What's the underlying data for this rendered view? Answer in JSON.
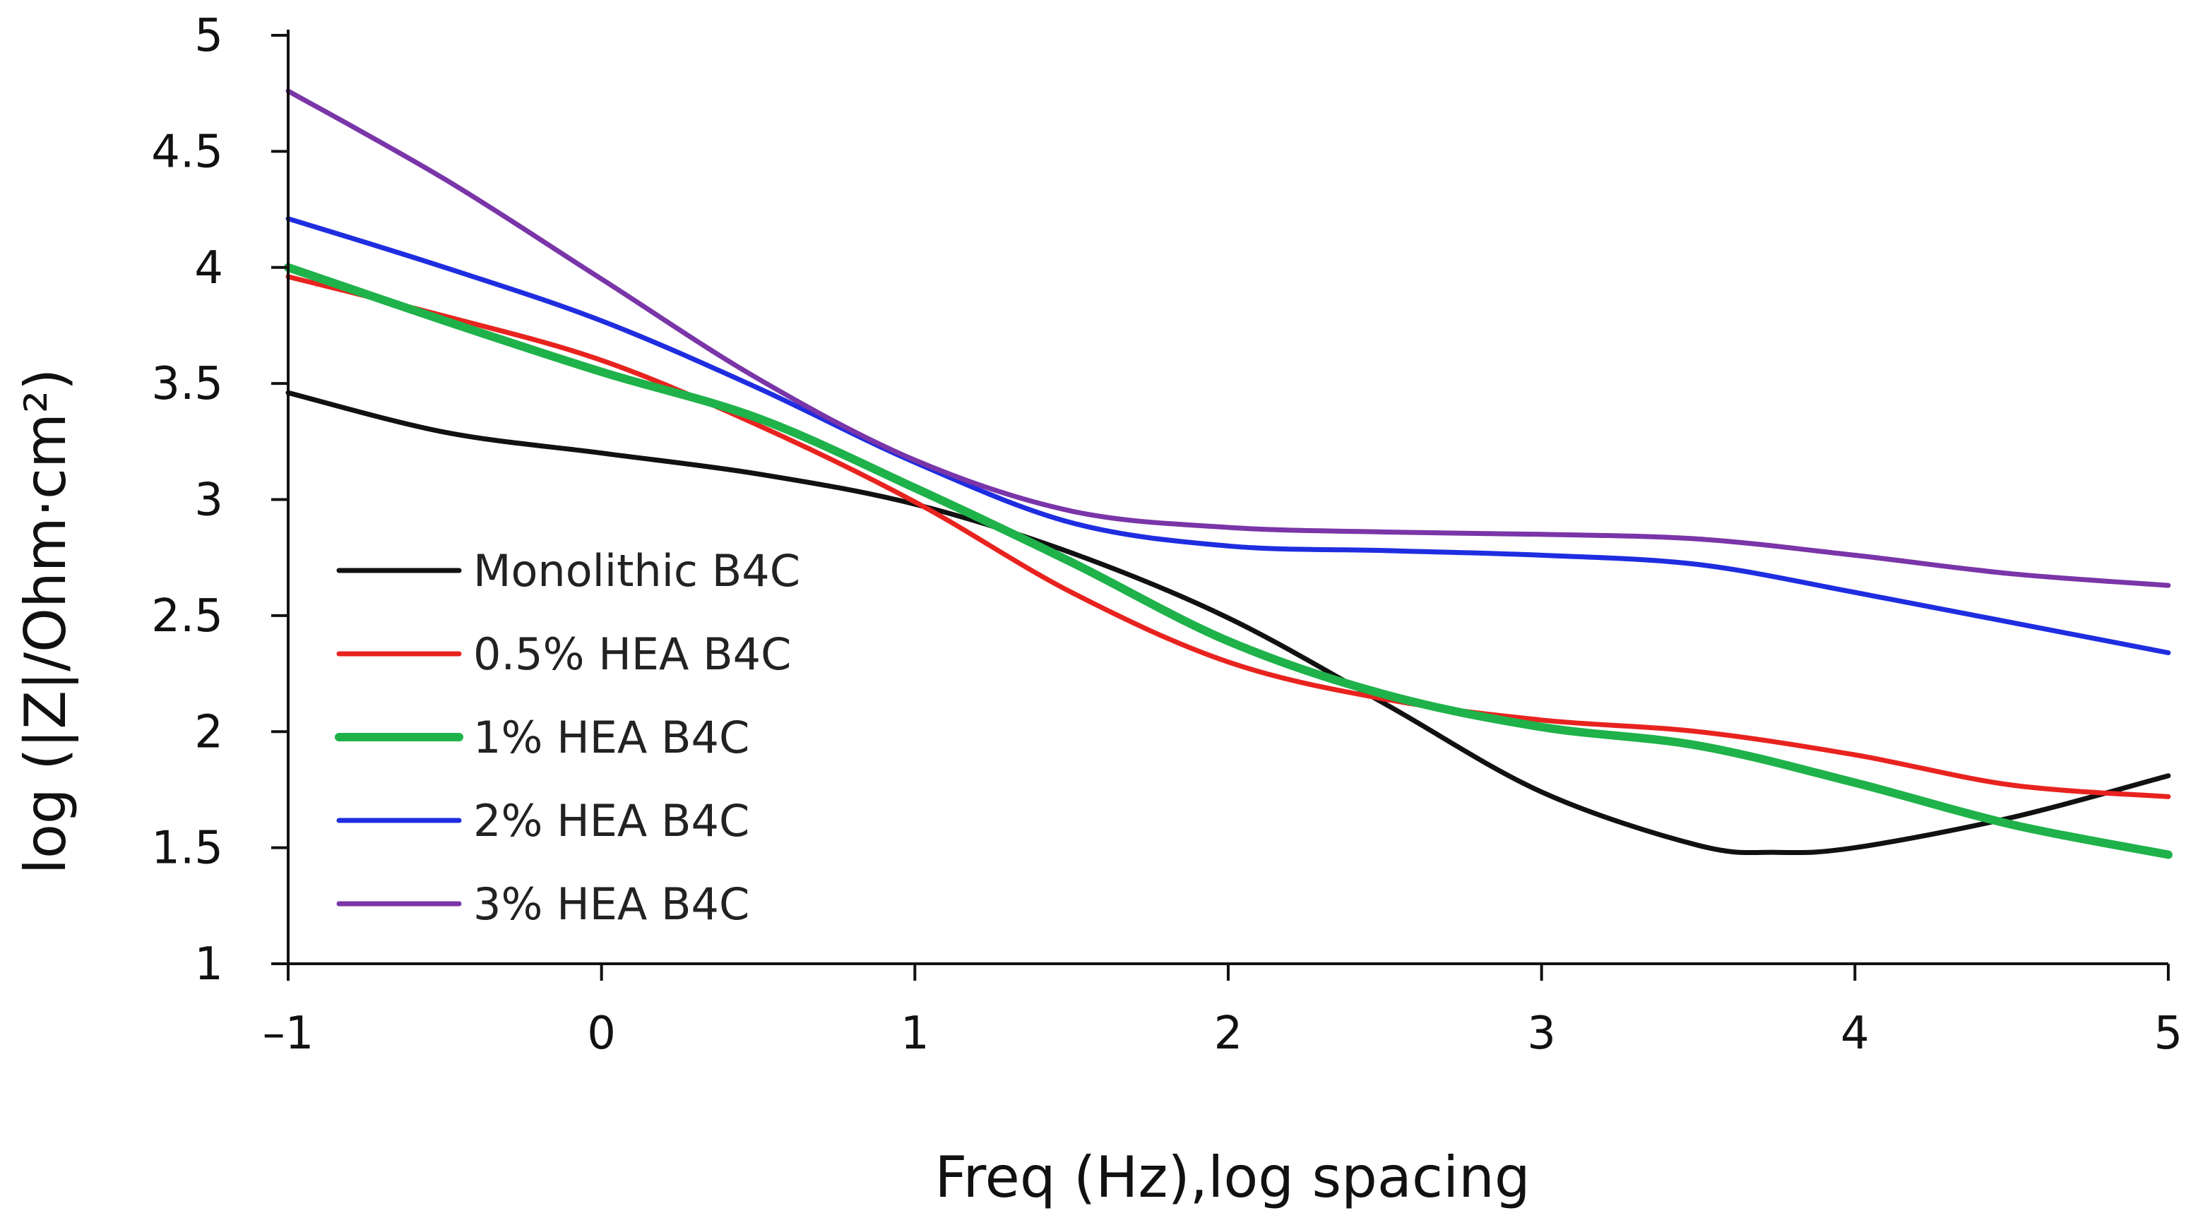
{
  "chart_data": {
    "type": "line",
    "title": "",
    "xlabel": "Freq (Hz),log spacing",
    "ylabel": "log (|Z|/Ohm·cm²)",
    "xlim": [
      -1,
      5
    ],
    "ylim": [
      1,
      5
    ],
    "xticks": [
      -1,
      0,
      1,
      2,
      3,
      4,
      5
    ],
    "xtick_labels": [
      "–1",
      "0",
      "1",
      "2",
      "3",
      "4",
      "5"
    ],
    "yticks": [
      1,
      1.5,
      2,
      2.5,
      3,
      3.5,
      4,
      4.5,
      5
    ],
    "ytick_labels": [
      "1",
      "1.5",
      "2",
      "2.5",
      "3",
      "3.5",
      "4",
      "4.5",
      "5"
    ],
    "grid": false,
    "legend_position": "lower-left",
    "series": [
      {
        "name": "Monolithic B4C",
        "color": "#111111",
        "x": [
          -1,
          -0.5,
          0,
          0.5,
          1,
          1.5,
          2,
          2.5,
          3,
          3.5,
          3.75,
          4,
          4.5,
          5
        ],
        "y": [
          3.46,
          3.29,
          3.2,
          3.11,
          2.98,
          2.77,
          2.49,
          2.12,
          1.74,
          1.51,
          1.48,
          1.5,
          1.63,
          1.81
        ]
      },
      {
        "name": "0.5% HEA B4C",
        "color": "#e8231f",
        "x": [
          -1,
          -0.5,
          0,
          0.5,
          1,
          1.5,
          2,
          2.5,
          3,
          3.5,
          4,
          4.5,
          5
        ],
        "y": [
          3.96,
          3.79,
          3.6,
          3.32,
          2.99,
          2.6,
          2.3,
          2.14,
          2.05,
          2.0,
          1.9,
          1.77,
          1.72
        ]
      },
      {
        "name": "1% HEA B4C",
        "color": "#1fb24a",
        "x": [
          -1,
          -0.5,
          0,
          0.5,
          1,
          1.5,
          2,
          2.5,
          3,
          3.5,
          4,
          4.5,
          5
        ],
        "y": [
          4.0,
          3.77,
          3.55,
          3.35,
          3.05,
          2.73,
          2.39,
          2.16,
          2.02,
          1.94,
          1.78,
          1.6,
          1.47
        ]
      },
      {
        "name": "2% HEA B4C",
        "color": "#1f2de0",
        "x": [
          -1,
          -0.5,
          0,
          0.5,
          1,
          1.5,
          2,
          2.5,
          3,
          3.5,
          4,
          4.5,
          5
        ],
        "y": [
          4.21,
          4.0,
          3.77,
          3.48,
          3.16,
          2.9,
          2.8,
          2.78,
          2.76,
          2.72,
          2.6,
          2.47,
          2.34
        ]
      },
      {
        "name": "3% HEA B4C",
        "color": "#7a35a8",
        "x": [
          -1,
          -0.5,
          0,
          0.5,
          1,
          1.5,
          2,
          2.5,
          3,
          3.5,
          4,
          4.5,
          5
        ],
        "y": [
          4.76,
          4.38,
          3.95,
          3.52,
          3.17,
          2.95,
          2.88,
          2.86,
          2.85,
          2.83,
          2.76,
          2.68,
          2.63
        ]
      }
    ]
  }
}
